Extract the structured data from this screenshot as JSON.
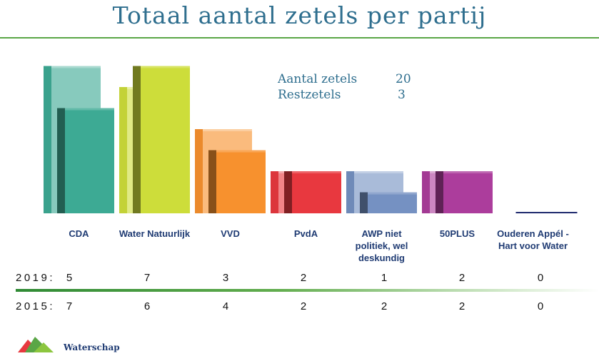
{
  "title": "Totaal aantal zetels per partij",
  "info": {
    "seats_label": "Aantal zetels",
    "seats_value": "20",
    "rest_label": "Restzetels",
    "rest_value": "3"
  },
  "years": {
    "y2019_label": "2019:",
    "y2015_label": "2015:"
  },
  "logo": {
    "text": "Waterschap"
  },
  "chart_data": {
    "type": "bar",
    "title": "Totaal aantal zetels per partij",
    "categories": [
      "CDA",
      "Water Natuurlijk",
      "VVD",
      "PvdA",
      "AWP niet politiek, wel deskundig",
      "50PLUS",
      "Ouderen Appél - Hart voor Water"
    ],
    "category_lines": [
      [
        "CDA"
      ],
      [
        "Water Natuurlijk"
      ],
      [
        "VVD"
      ],
      [
        "PvdA"
      ],
      [
        "AWP niet",
        "politiek, wel",
        "deskundig"
      ],
      [
        "50PLUS"
      ],
      [
        "Ouderen Appél -",
        "Hart voor Water"
      ]
    ],
    "series": [
      {
        "name": "2015",
        "values": [
          7,
          6,
          4,
          2,
          2,
          2,
          0
        ]
      },
      {
        "name": "2019",
        "values": [
          5,
          7,
          3,
          2,
          1,
          2,
          0
        ]
      }
    ],
    "colors": [
      "#3daa94",
      "#cddd3a",
      "#f7912e",
      "#e8383f",
      "#7591c2",
      "#ac3d9c",
      "#1f2a6e"
    ],
    "ylim": [
      0,
      7
    ],
    "grid": false,
    "legend": "none"
  }
}
